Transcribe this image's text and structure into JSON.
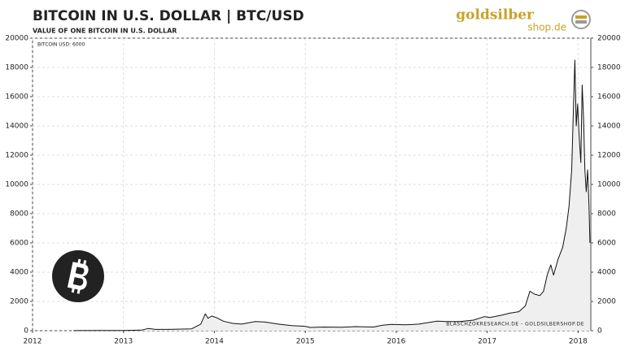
{
  "chart_data": {
    "type": "line",
    "title": "BITCOIN  IN  U.S. DOLLAR  |  BTC/USD",
    "subtitle": "VALUE OF ONE BITCOIN IN U.S. DOLLAR",
    "annotation": "BITCOIN USD: 6000",
    "source": "BLASCHZOKRESEARCH.DE  -  GOLDSILBERSHOP.DE",
    "x": [
      2012.45,
      2012.7,
      2013.0,
      2013.2,
      2013.27,
      2013.35,
      2013.5,
      2013.75,
      2013.85,
      2013.9,
      2013.93,
      2013.97,
      2014.02,
      2014.1,
      2014.2,
      2014.3,
      2014.45,
      2014.55,
      2014.7,
      2014.85,
      2015.0,
      2015.05,
      2015.2,
      2015.4,
      2015.55,
      2015.75,
      2015.85,
      2015.95,
      2016.1,
      2016.25,
      2016.45,
      2016.55,
      2016.7,
      2016.85,
      2016.97,
      2017.03,
      2017.15,
      2017.25,
      2017.35,
      2017.42,
      2017.47,
      2017.52,
      2017.58,
      2017.62,
      2017.66,
      2017.7,
      2017.73,
      2017.78,
      2017.83,
      2017.87,
      2017.9,
      2017.93,
      2017.955,
      2017.965,
      2017.98,
      2017.995,
      2018.01,
      2018.03,
      2018.045,
      2018.06,
      2018.075,
      2018.09,
      2018.105,
      2018.12,
      2018.13
    ],
    "values": [
      5,
      10,
      13,
      40,
      150,
      90,
      90,
      130,
      450,
      1150,
      850,
      1000,
      900,
      650,
      500,
      450,
      620,
      600,
      450,
      350,
      300,
      220,
      250,
      240,
      280,
      250,
      380,
      430,
      400,
      450,
      650,
      620,
      620,
      720,
      960,
      900,
      1050,
      1200,
      1300,
      1700,
      2700,
      2500,
      2400,
      2700,
      3800,
      4500,
      3800,
      4900,
      5700,
      7000,
      8500,
      11000,
      16500,
      18500,
      14000,
      15500,
      13500,
      11500,
      16800,
      14500,
      11000,
      9500,
      11000,
      8500,
      6000
    ],
    "color": "#111111",
    "fill": "#efefef",
    "xlim": [
      2012,
      2018.14
    ],
    "xticks": [
      2012,
      2013,
      2014,
      2015,
      2016,
      2017,
      2018
    ],
    "ylim": [
      0,
      20000
    ],
    "yticks": [
      0,
      2000,
      4000,
      6000,
      8000,
      10000,
      12000,
      14000,
      16000,
      18000,
      20000
    ],
    "y2lim": [
      0,
      20000
    ],
    "y2ticks": [
      0,
      2000,
      4000,
      6000,
      8000,
      10000,
      12000,
      14000,
      16000,
      18000,
      20000
    ],
    "grid": true
  },
  "logo": {
    "brand": "goldsilber",
    "domain": "shop.de"
  }
}
